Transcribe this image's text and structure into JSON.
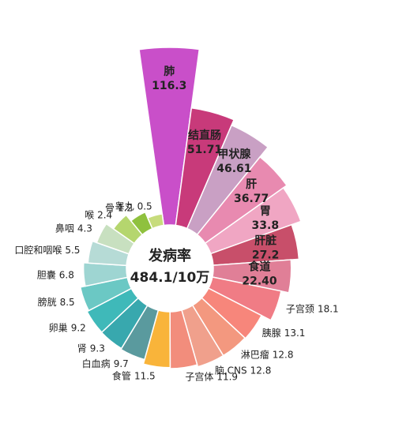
{
  "chart_data": {
    "type": "rose",
    "center_label": [
      "发病率",
      "484.1/10万"
    ],
    "categories": [
      "肺",
      "结直肠",
      "甲状腺",
      "肝",
      "胃",
      "肝脏",
      "食道",
      "子宫颈",
      "胰腺",
      "淋巴瘤",
      "脑,CNS",
      "子宫体",
      "食管",
      "白血病",
      "肾",
      "卵巢",
      "膀胱",
      "胆囊",
      "口腔和咽喉",
      "鼻咽",
      "喉",
      "骨",
      "睾丸"
    ],
    "values": [
      116.3,
      51.71,
      46.61,
      36.77,
      33.8,
      27.2,
      22.4,
      18.1,
      13.1,
      12.8,
      12.8,
      11.9,
      11.5,
      9.7,
      9.3,
      9.2,
      8.5,
      6.8,
      5.5,
      4.3,
      2.4,
      1.2,
      0.5
    ],
    "value_labels": [
      "116.3",
      "51.71",
      "46.61",
      "36.77",
      "33.8",
      "27.2",
      "22.40",
      "18.1",
      "13.1",
      "12.8",
      "12.8",
      "11.9",
      "11.5",
      "9.7",
      "9.3",
      "9.2",
      "8.5",
      "6.8",
      "5.5",
      "4.3",
      "2.4",
      "1.2",
      "0.5"
    ],
    "colors": [
      "#c94fc9",
      "#c83a7a",
      "#c9a0c4",
      "#e88ab0",
      "#f0a6c3",
      "#c84f6a",
      "#e07f97",
      "#f07c85",
      "#f7867b",
      "#f3987f",
      "#f0a08c",
      "#f28d7c",
      "#f9b43a",
      "#5a9a9e",
      "#38a8ae",
      "#3fb9b9",
      "#6bc8c4",
      "#9ed5d2",
      "#b6dbd6",
      "#c8e0c0",
      "#b5d66e",
      "#8fc13e",
      "#c7dc7c"
    ]
  }
}
